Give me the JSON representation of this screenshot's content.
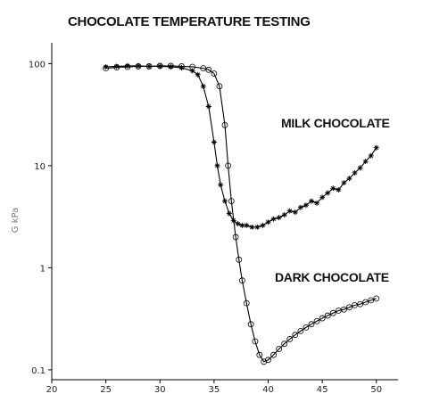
{
  "chart_data": {
    "type": "line",
    "title": "CHOCOLATE TEMPERATURE TESTING",
    "xlabel": "",
    "ylabel": "G kPa",
    "yscale": "log",
    "xlim": [
      20,
      52
    ],
    "ylim": [
      0.08,
      160
    ],
    "x_ticks": [
      "20",
      "25",
      "30",
      "35",
      "40",
      "45",
      "50"
    ],
    "y_ticks": [
      "0.1",
      "1",
      "10",
      "100"
    ],
    "grid": false,
    "series": [
      {
        "name": "MILK CHOCOLATE",
        "marker": "star",
        "x": [
          25,
          26,
          27,
          28,
          29,
          30,
          31,
          32,
          33,
          33.5,
          34,
          34.5,
          35,
          35.3,
          35.6,
          36,
          36.4,
          36.8,
          37.2,
          37.6,
          38,
          38.5,
          39,
          39.5,
          40,
          40.5,
          41,
          41.5,
          42,
          42.5,
          43,
          43.5,
          44,
          44.5,
          45,
          45.5,
          46,
          46.5,
          47,
          47.5,
          48,
          48.5,
          49,
          49.5,
          50
        ],
        "y": [
          93,
          94,
          95,
          95,
          94,
          94,
          93,
          91,
          85,
          78,
          60,
          38,
          17,
          10,
          6.5,
          4.5,
          3.4,
          2.9,
          2.7,
          2.6,
          2.6,
          2.5,
          2.5,
          2.6,
          2.8,
          3.0,
          3.1,
          3.3,
          3.6,
          3.5,
          3.9,
          4.1,
          4.5,
          4.3,
          4.9,
          5.4,
          6.0,
          5.8,
          6.8,
          7.5,
          8.5,
          9.5,
          11,
          12.5,
          15
        ]
      },
      {
        "name": "DARK CHOCOLATE",
        "marker": "circle",
        "x": [
          25,
          26,
          27,
          28,
          29,
          30,
          31,
          32,
          33,
          34,
          34.5,
          35,
          35.5,
          36,
          36.3,
          36.6,
          37,
          37.3,
          37.6,
          38,
          38.4,
          38.8,
          39.2,
          39.6,
          40,
          40.5,
          41,
          41.5,
          42,
          42.5,
          43,
          43.5,
          44,
          44.5,
          45,
          45.5,
          46,
          46.5,
          47,
          47.5,
          48,
          48.5,
          49,
          49.5,
          50
        ],
        "y": [
          90,
          92,
          93,
          94,
          94,
          95,
          95,
          94,
          93,
          90,
          87,
          80,
          60,
          25,
          10,
          4.5,
          2.0,
          1.2,
          0.75,
          0.45,
          0.28,
          0.19,
          0.14,
          0.12,
          0.125,
          0.14,
          0.16,
          0.18,
          0.2,
          0.22,
          0.24,
          0.26,
          0.28,
          0.3,
          0.32,
          0.34,
          0.36,
          0.38,
          0.39,
          0.41,
          0.43,
          0.44,
          0.46,
          0.48,
          0.5
        ]
      }
    ]
  }
}
